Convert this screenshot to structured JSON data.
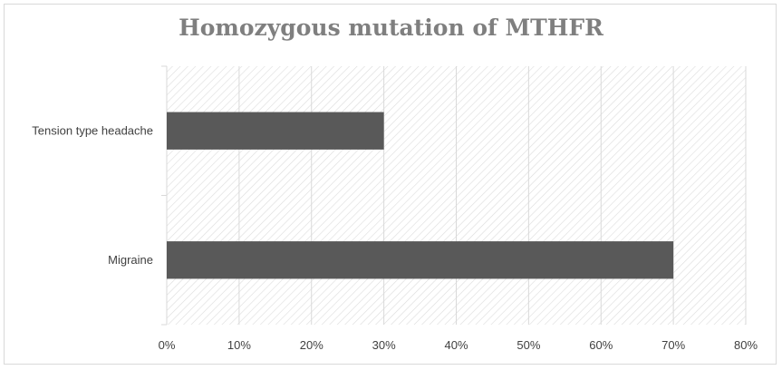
{
  "chart_data": {
    "type": "bar",
    "orientation": "horizontal",
    "title": "Homozygous mutation of MTHFR",
    "categories": [
      "Tension type headache",
      "Migraine"
    ],
    "series": [
      {
        "values": [
          30,
          70
        ],
        "color": "#595959"
      }
    ],
    "xlim": [
      0,
      80
    ],
    "x_ticks": [
      "0%",
      "10%",
      "20%",
      "30%",
      "40%",
      "50%",
      "60%",
      "70%",
      "80%"
    ],
    "xlabel": "",
    "ylabel": "",
    "grid": true,
    "legend": "none",
    "background": "diagonal-hatch"
  }
}
